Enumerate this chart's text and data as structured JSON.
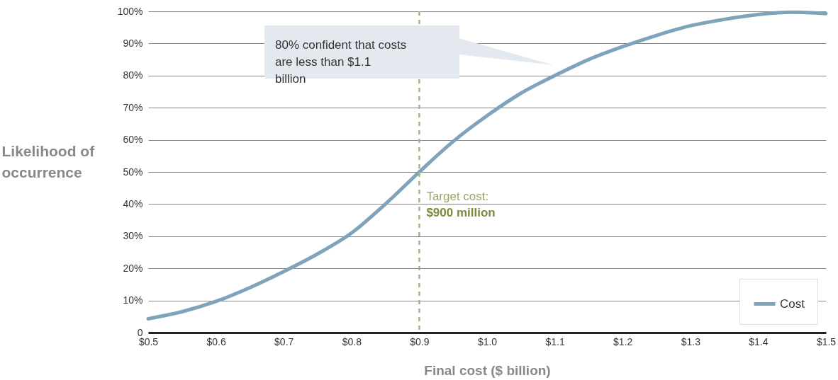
{
  "chart_data": {
    "type": "line",
    "xlabel": "Final cost ($ billion)",
    "ylabel": "Likelihood of occurrence",
    "x": [
      0.5,
      0.55,
      0.6,
      0.65,
      0.7,
      0.75,
      0.8,
      0.85,
      0.9,
      0.95,
      1.0,
      1.05,
      1.1,
      1.15,
      1.2,
      1.25,
      1.3,
      1.35,
      1.4,
      1.45,
      1.5
    ],
    "series": [
      {
        "name": "Cost",
        "color": "#7fa3bb",
        "values": [
          4.3,
          6.5,
          9.7,
          14,
          19,
          24.5,
          31,
          40,
          50,
          59.5,
          67.5,
          74.5,
          80,
          85,
          89,
          92.5,
          95.5,
          97.5,
          99,
          99.7,
          99.3
        ]
      }
    ],
    "xlim": [
      0.5,
      1.5
    ],
    "ylim": [
      0,
      100
    ],
    "xticks": [
      {
        "value": 0.5,
        "label": "$0.5"
      },
      {
        "value": 0.6,
        "label": "$0.6"
      },
      {
        "value": 0.7,
        "label": "$0.7"
      },
      {
        "value": 0.8,
        "label": "$0.8"
      },
      {
        "value": 0.9,
        "label": "$0.9"
      },
      {
        "value": 1.0,
        "label": "$1.0"
      },
      {
        "value": 1.1,
        "label": "$1.1"
      },
      {
        "value": 1.2,
        "label": "$1.2"
      },
      {
        "value": 1.3,
        "label": "$1.3"
      },
      {
        "value": 1.4,
        "label": "$1.4"
      },
      {
        "value": 1.5,
        "label": "$1.5"
      }
    ],
    "yticks": [
      0,
      {
        "value": 10,
        "label": "10%"
      },
      {
        "value": 20,
        "label": "20%"
      },
      {
        "value": 30,
        "label": "30%"
      },
      {
        "value": 40,
        "label": "40%"
      },
      {
        "value": 50,
        "label": "50%"
      },
      {
        "value": 60,
        "label": "60%"
      },
      {
        "value": 70,
        "label": "70%"
      },
      {
        "value": 80,
        "label": "80%"
      },
      {
        "value": 90,
        "label": "90%"
      },
      {
        "value": 100,
        "label": "100%"
      }
    ],
    "ref_lines": [
      {
        "axis": "x",
        "value": 0.9,
        "label": "Target cost: $900 million",
        "color": "#a9b38a",
        "line_style": "dashed"
      }
    ],
    "annotations": [
      "80% confident that costs are less than $1.1 billion"
    ],
    "grid": "y",
    "legend": "bottom right"
  }
}
